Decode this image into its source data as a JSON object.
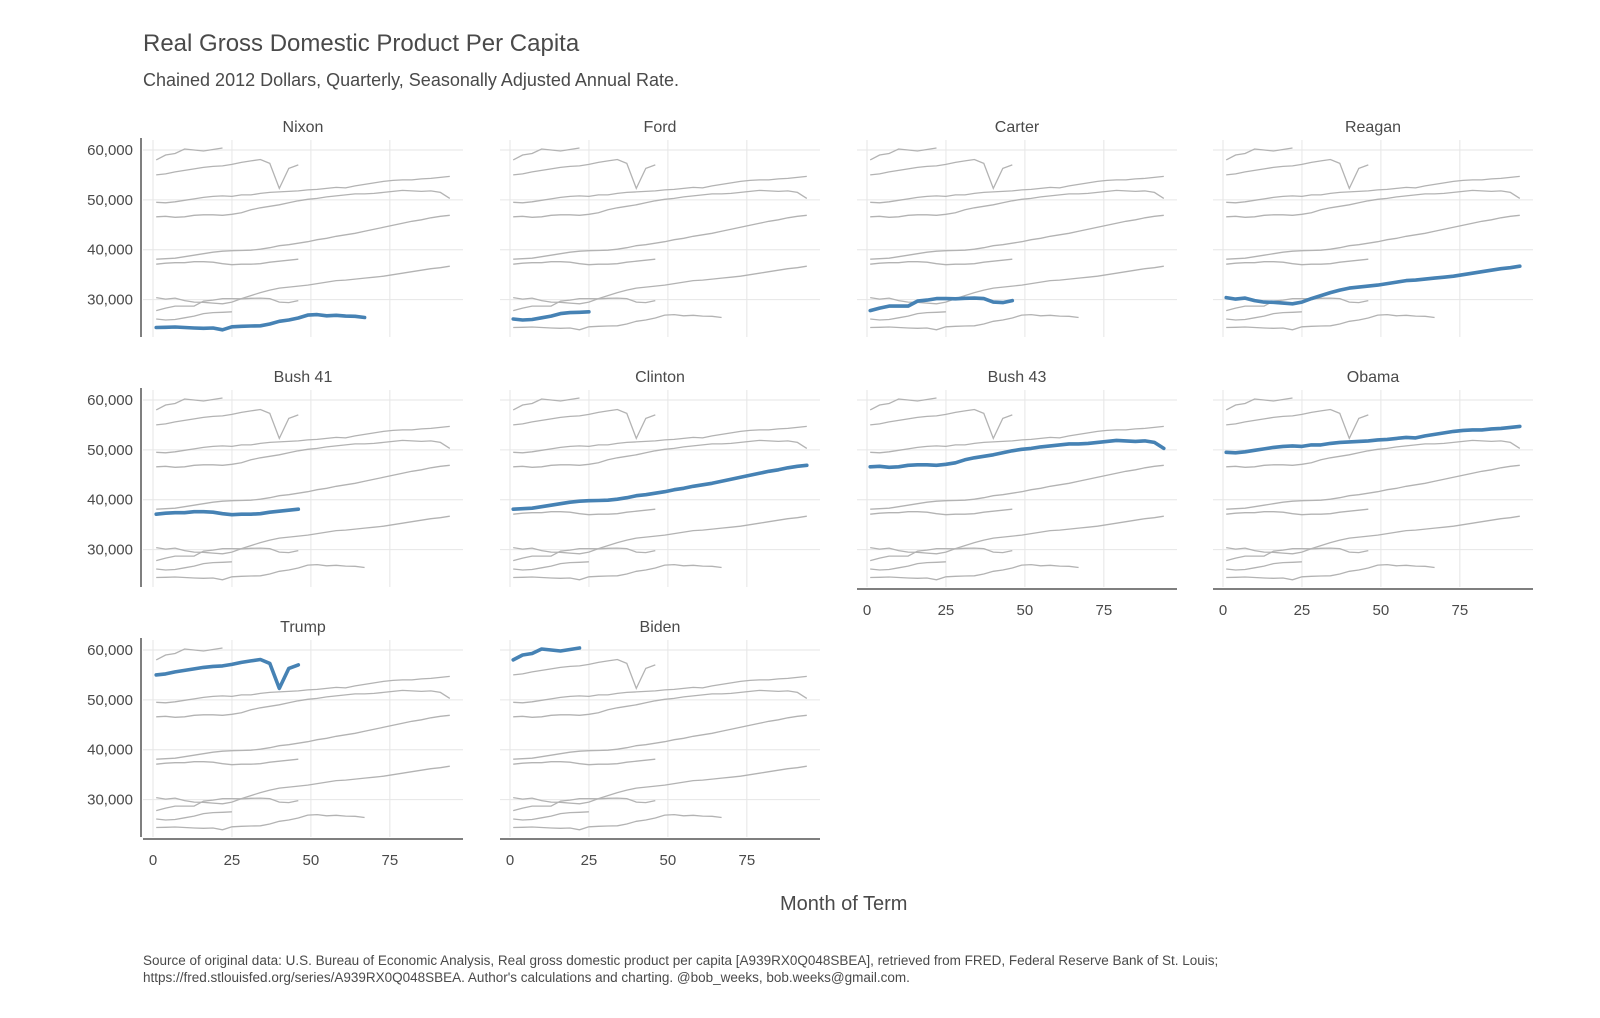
{
  "chart_data": {
    "type": "line",
    "title": "Real Gross Domestic Product Per Capita",
    "subtitle": "Chained 2012 Dollars, Quarterly, Seasonally Adjusted Annual Rate.",
    "xlabel": "Month of Term",
    "ylabel": "",
    "xlim": [
      0,
      95
    ],
    "ylim": [
      22500,
      62000
    ],
    "xticks": [
      0,
      25,
      50,
      75
    ],
    "yticks": [
      30000,
      40000,
      50000,
      60000
    ],
    "ytick_labels": [
      "30,000",
      "40,000",
      "50,000",
      "60,000"
    ],
    "grid": true,
    "highlight_color": "#4682b4",
    "background_color": "#b3b3b3",
    "caption": [
      "Source of original data: U.S. Bureau of Economic Analysis, Real gross domestic product per capita [A939RX0Q048SBEA], retrieved from FRED, Federal Reserve Bank of St. Louis;",
      "https://fred.stlouisfed.org/series/A939RX0Q048SBEA. Author's calculations and charting. @bob_weeks, bob.weeks@gmail.com."
    ],
    "panels": [
      "Nixon",
      "Ford",
      "Carter",
      "Reagan",
      "Bush 41",
      "Clinton",
      "Bush 43",
      "Obama",
      "Trump",
      "Biden"
    ],
    "series": [
      {
        "name": "Nixon",
        "x": [
          1,
          4,
          7,
          10,
          13,
          16,
          19,
          22,
          25,
          28,
          31,
          34,
          37,
          40,
          43,
          46,
          49,
          52,
          55,
          58,
          61,
          64,
          67
        ],
        "values": [
          24400,
          24450,
          24500,
          24400,
          24300,
          24250,
          24300,
          23950,
          24550,
          24650,
          24700,
          24750,
          25100,
          25650,
          25900,
          26300,
          26900,
          27000,
          26750,
          26850,
          26700,
          26650,
          26400
        ]
      },
      {
        "name": "Ford",
        "x": [
          1,
          4,
          7,
          10,
          13,
          16,
          19,
          22,
          25
        ],
        "values": [
          26100,
          25900,
          26000,
          26350,
          26700,
          27200,
          27400,
          27450,
          27550
        ]
      },
      {
        "name": "Carter",
        "x": [
          1,
          4,
          7,
          10,
          13,
          16,
          19,
          22,
          25,
          28,
          31,
          34,
          37,
          40,
          43,
          46
        ],
        "values": [
          27800,
          28300,
          28700,
          28700,
          28700,
          29700,
          29900,
          30200,
          30200,
          30150,
          30250,
          30300,
          30200,
          29500,
          29400,
          29800
        ]
      },
      {
        "name": "Reagan",
        "x": [
          1,
          4,
          7,
          10,
          13,
          16,
          19,
          22,
          25,
          28,
          31,
          34,
          37,
          40,
          43,
          46,
          49,
          52,
          55,
          58,
          61,
          64,
          67,
          70,
          73,
          76,
          79,
          82,
          85,
          88,
          91,
          94
        ],
        "values": [
          30400,
          30100,
          30300,
          29800,
          29500,
          29450,
          29300,
          29150,
          29500,
          30200,
          30800,
          31400,
          31900,
          32300,
          32500,
          32700,
          32900,
          33200,
          33500,
          33800,
          33900,
          34100,
          34300,
          34500,
          34700,
          35000,
          35300,
          35600,
          35900,
          36200,
          36400,
          36700
        ]
      },
      {
        "name": "Bush 41",
        "x": [
          1,
          4,
          7,
          10,
          13,
          16,
          19,
          22,
          25,
          28,
          31,
          34,
          37,
          40,
          43,
          46
        ],
        "values": [
          37100,
          37300,
          37400,
          37400,
          37600,
          37600,
          37500,
          37200,
          37000,
          37100,
          37100,
          37200,
          37500,
          37700,
          37900,
          38100
        ]
      },
      {
        "name": "Clinton",
        "x": [
          1,
          4,
          7,
          10,
          13,
          16,
          19,
          22,
          25,
          28,
          31,
          34,
          37,
          40,
          43,
          46,
          49,
          52,
          55,
          58,
          61,
          64,
          67,
          70,
          73,
          76,
          79,
          82,
          85,
          88,
          91,
          94
        ],
        "values": [
          38100,
          38200,
          38300,
          38600,
          38900,
          39200,
          39500,
          39700,
          39800,
          39850,
          39900,
          40100,
          40400,
          40800,
          41000,
          41300,
          41600,
          42000,
          42300,
          42700,
          43000,
          43300,
          43700,
          44100,
          44500,
          44900,
          45300,
          45700,
          46000,
          46400,
          46700,
          46900
        ]
      },
      {
        "name": "Bush 43",
        "x": [
          1,
          4,
          7,
          10,
          13,
          16,
          19,
          22,
          25,
          28,
          31,
          34,
          37,
          40,
          43,
          46,
          49,
          52,
          55,
          58,
          61,
          64,
          67,
          70,
          73,
          76,
          79,
          82,
          85,
          88,
          91,
          94
        ],
        "values": [
          46600,
          46700,
          46500,
          46600,
          46900,
          47000,
          47000,
          46900,
          47100,
          47400,
          48000,
          48400,
          48700,
          49000,
          49400,
          49800,
          50100,
          50300,
          50600,
          50800,
          51000,
          51200,
          51200,
          51300,
          51500,
          51700,
          51900,
          51800,
          51700,
          51800,
          51500,
          50300
        ]
      },
      {
        "name": "Obama",
        "x": [
          1,
          4,
          7,
          10,
          13,
          16,
          19,
          22,
          25,
          28,
          31,
          34,
          37,
          40,
          43,
          46,
          49,
          52,
          55,
          58,
          61,
          64,
          67,
          70,
          73,
          76,
          79,
          82,
          85,
          88,
          91,
          94
        ],
        "values": [
          49500,
          49400,
          49600,
          49900,
          50200,
          50500,
          50700,
          50800,
          50700,
          51000,
          51000,
          51300,
          51500,
          51600,
          51700,
          51800,
          52000,
          52100,
          52300,
          52500,
          52400,
          52800,
          53100,
          53400,
          53700,
          53900,
          54000,
          54000,
          54200,
          54300,
          54500,
          54700
        ]
      },
      {
        "name": "Trump",
        "x": [
          1,
          4,
          7,
          10,
          13,
          16,
          19,
          22,
          25,
          28,
          31,
          34,
          37,
          40,
          43,
          46
        ],
        "values": [
          55000,
          55200,
          55600,
          55900,
          56200,
          56500,
          56700,
          56800,
          57100,
          57500,
          57800,
          58100,
          57300,
          52300,
          56300,
          57000
        ]
      },
      {
        "name": "Biden",
        "x": [
          1,
          4,
          7,
          10,
          13,
          16,
          19,
          22
        ],
        "values": [
          58000,
          59000,
          59300,
          60200,
          60000,
          59800,
          60100,
          60400
        ]
      }
    ]
  }
}
